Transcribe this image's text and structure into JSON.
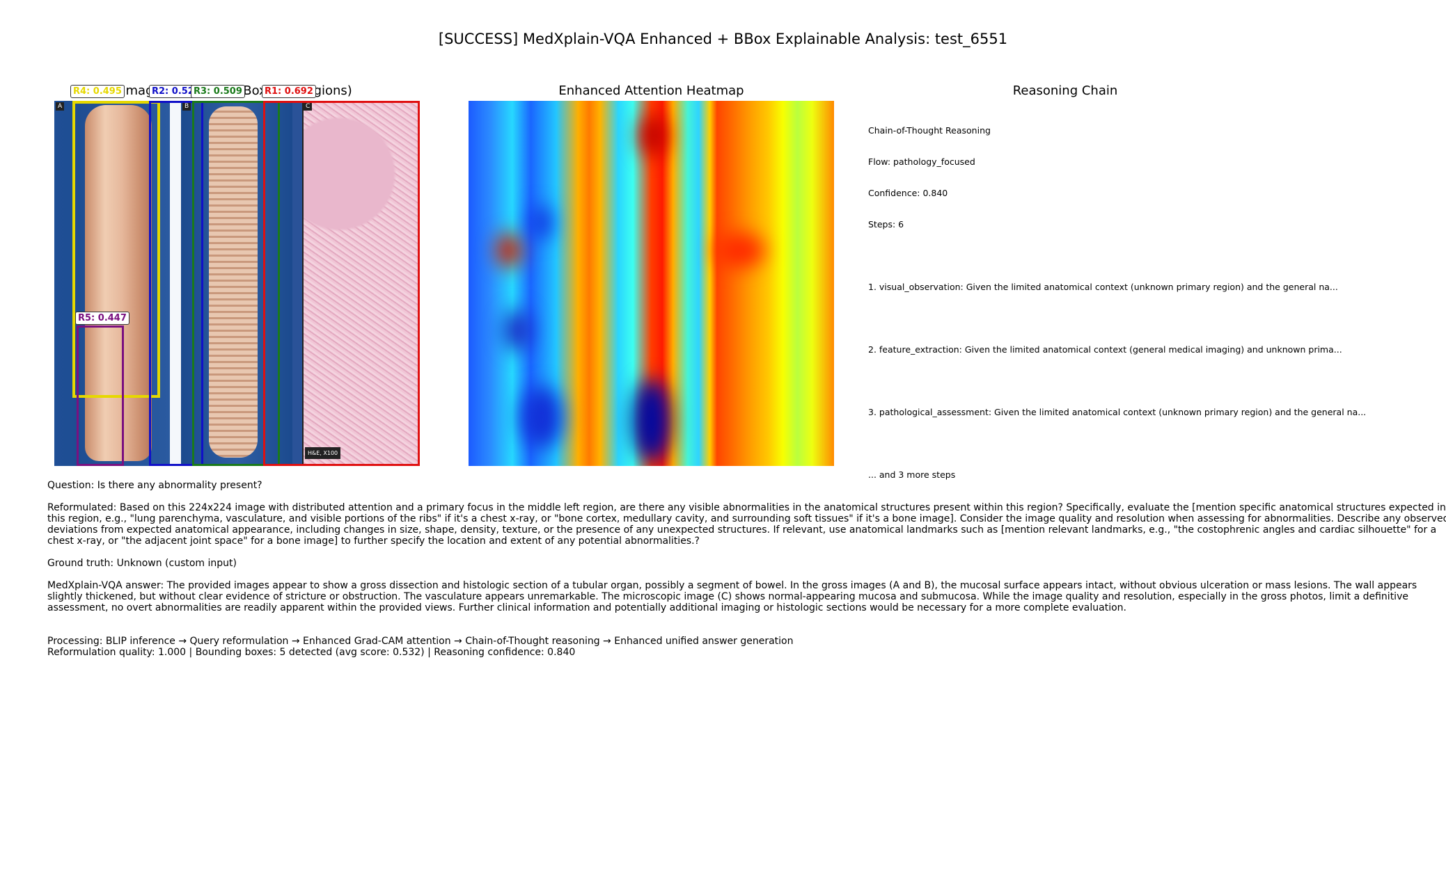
{
  "figure": {
    "title": "[SUCCESS] MedXplain-VQA Enhanced + BBox Explainable Analysis: test_6551"
  },
  "panel_image": {
    "title": "Image + Bounding Boxes (5 regions)",
    "subfigure_tags": [
      "A",
      "B",
      "C"
    ],
    "scale_tag": "H&E, X100",
    "boxes": [
      {
        "label": "R4: 0.495",
        "color": "#e6d800"
      },
      {
        "label": "R2: 0.523",
        "color": "#1010c8"
      },
      {
        "label": "R3: 0.509",
        "color": "#1a7a1a"
      },
      {
        "label": "R1: 0.692",
        "color": "#e01010"
      },
      {
        "label": "R5: 0.447",
        "color": "#7a1080"
      }
    ]
  },
  "panel_heatmap": {
    "title": "Enhanced Attention Heatmap"
  },
  "panel_reasoning": {
    "title": "Reasoning Chain",
    "header": "Chain-of-Thought Reasoning",
    "flow": "Flow: pathology_focused",
    "confidence": "Confidence: 0.840",
    "steps": "Steps: 6",
    "step1": "1. visual_observation: Given the limited anatomical context (unknown primary region) and the general na...",
    "step2": "2. feature_extraction: Given the limited anatomical context (general medical imaging) and unknown prima...",
    "step3": "3. pathological_assessment: Given the limited anatomical context (unknown primary region) and the general na...",
    "more": "... and 3 more steps"
  },
  "text_block": {
    "question": "Question: Is there any abnormality present?",
    "reformulated_1": "Reformulated: Based on this 224x224 image with distributed attention and a primary focus in the middle left region, are there any visible abnormalities in the anatomical structures present within this region?  Specifically, evaluate the [mention specific anatomical structures expected in",
    "reformulated_2": "this region, e.g.,  \"lung parenchyma, vasculature, and visible portions of the ribs\" if it's a chest x-ray, or \"bone cortex, medullary cavity, and surrounding soft tissues\" if it's a bone image]. Consider the image quality and resolution when assessing for abnormalities.  Describe any observed",
    "reformulated_3": "deviations from expected anatomical appearance, including changes in size, shape, density, texture, or the presence of any unexpected structures. If relevant, use anatomical landmarks such as [mention relevant landmarks, e.g., \"the costophrenic angles and cardiac silhouette\" for a",
    "reformulated_4": "chest x-ray, or \"the adjacent joint space\" for a bone image] to further specify the location and extent of any potential abnormalities.?",
    "ground_truth": "Ground truth: Unknown (custom input)",
    "answer_1": "MedXplain-VQA answer: The provided images appear to show a gross dissection and histologic section of a tubular organ, possibly a segment of bowel.  In the gross images (A and B), the mucosal surface appears intact, without obvious ulceration or mass lesions.  The wall appears",
    "answer_2": "slightly thickened, but without clear evidence of stricture or obstruction.  The vasculature appears unremarkable. The microscopic image (C) shows normal-appearing mucosa and submucosa. While the image quality and resolution, especially in the gross photos, limit a definitive",
    "answer_3": "assessment, no overt abnormalities are readily apparent within the provided views.  Further clinical information and potentially additional imaging or histologic sections would be necessary for a more complete evaluation.",
    "processing": "Processing: BLIP inference → Query reformulation → Enhanced Grad-CAM attention → Chain-of-Thought reasoning → Enhanced unified answer generation",
    "metrics": "Reformulation quality: 1.000 | Bounding boxes: 5 detected (avg score: 0.532) | Reasoning confidence: 0.840"
  }
}
